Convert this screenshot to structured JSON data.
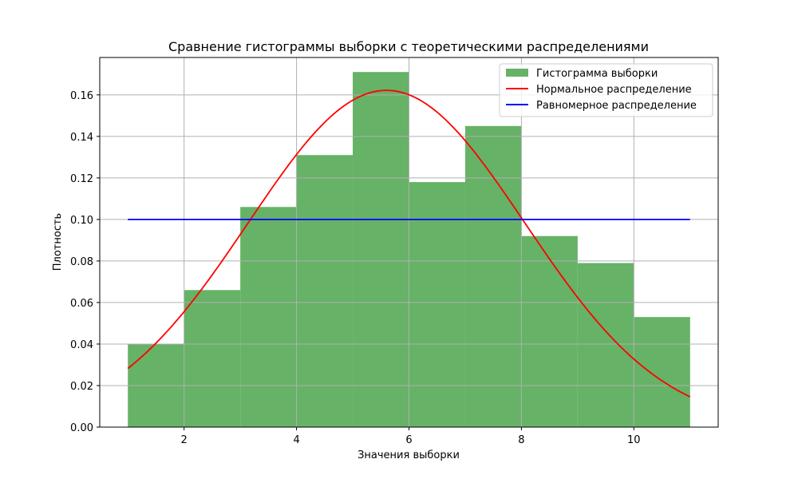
{
  "chart_data": {
    "type": "bar",
    "title": "Сравнение гистограммы выборки с теоретическими распределениями",
    "xlabel": "Значения выборки",
    "ylabel": "Плотность",
    "xlim": [
      0.5,
      11.5
    ],
    "ylim": [
      0,
      0.178
    ],
    "x_ticks": [
      2,
      4,
      6,
      8,
      10
    ],
    "y_ticks": [
      0.0,
      0.02,
      0.04,
      0.06,
      0.08,
      0.1,
      0.12,
      0.14,
      0.16
    ],
    "grid": true,
    "legend_position": "top-right",
    "histogram": {
      "name": "Гистограмма выборки",
      "color": "#66b266",
      "bin_edges": [
        1,
        2,
        3,
        4,
        5,
        6,
        7,
        8,
        9,
        10,
        11
      ],
      "values": [
        0.04,
        0.066,
        0.106,
        0.131,
        0.171,
        0.118,
        0.145,
        0.092,
        0.079,
        0.053
      ]
    },
    "series": [
      {
        "name": "Нормальное распределение",
        "type": "line",
        "color": "#ff0000",
        "distribution": "normal",
        "mean": 5.6,
        "std": 2.46,
        "x_range": [
          1,
          11
        ]
      },
      {
        "name": "Равномерное распределение",
        "type": "line",
        "color": "#0000ff",
        "distribution": "uniform",
        "value": 0.1,
        "x_range": [
          1,
          11
        ]
      }
    ]
  }
}
